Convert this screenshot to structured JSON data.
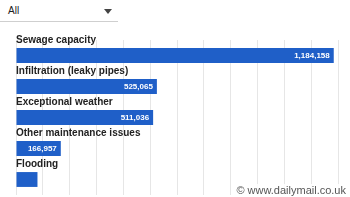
{
  "chart_data": {
    "type": "bar",
    "orientation": "horizontal",
    "categories": [
      "Sewage capacity",
      "Infiltration (leaky pipes)",
      "Exceptional weather",
      "Other maintenance issues",
      "Flooding"
    ],
    "values": [
      1184158,
      525065,
      511036,
      166957,
      80000
    ],
    "value_labels": [
      "1,184,158",
      "525,065",
      "511,036",
      "166,957",
      null
    ],
    "data_labels": true,
    "color": "#1f5fc8",
    "xlim": [
      0,
      1200000
    ],
    "xticks": [
      0,
      100000,
      200000,
      300000,
      400000,
      500000,
      600000,
      700000,
      800000,
      900000,
      1000000,
      1100000,
      1200000
    ],
    "grid": true,
    "tick_labels": false,
    "annotations": [
      "All",
      "© www.dailymail.co.uk"
    ]
  }
}
